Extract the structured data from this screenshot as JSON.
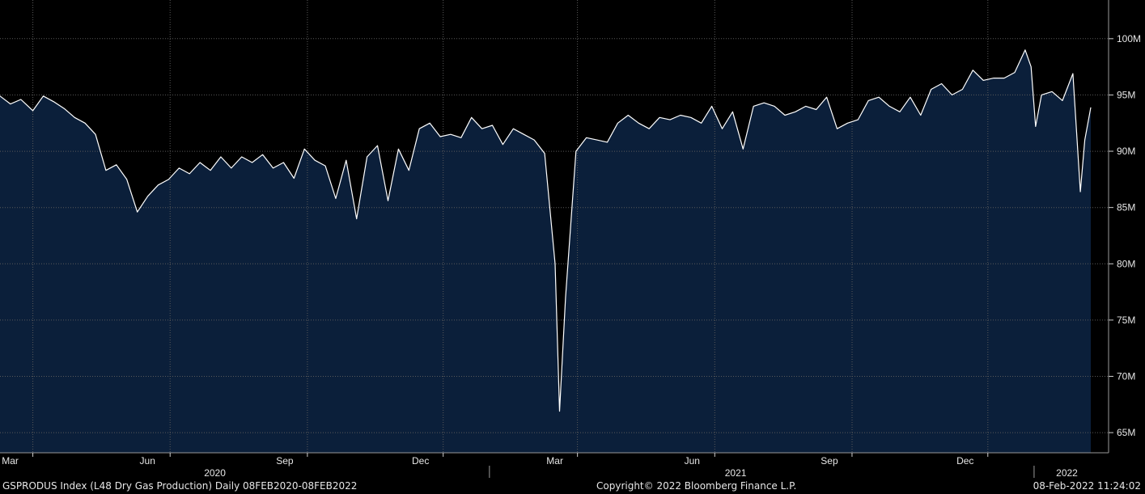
{
  "chart_data": {
    "type": "area",
    "ticker": "GSPRODUS Index (L48 Dry Gas Production)",
    "frequency": "Daily 08FEB2020-08FEB2022",
    "x_range": [
      "2020-02-08",
      "2022-02-08"
    ],
    "ylim": [
      64000000,
      102000000
    ],
    "y_ticks": [
      {
        "value": 65000000,
        "label": "65M"
      },
      {
        "value": 70000000,
        "label": "70M"
      },
      {
        "value": 75000000,
        "label": "75M"
      },
      {
        "value": 80000000,
        "label": "80M"
      },
      {
        "value": 85000000,
        "label": "85M"
      },
      {
        "value": 90000000,
        "label": "90M"
      },
      {
        "value": 95000000,
        "label": "95M"
      },
      {
        "value": 100000000,
        "label": "100M"
      }
    ],
    "x_month_ticks": [
      {
        "date": "2020-03-01",
        "label": "Mar"
      },
      {
        "date": "2020-06-01",
        "label": "Jun"
      },
      {
        "date": "2020-09-01",
        "label": "Sep"
      },
      {
        "date": "2020-12-01",
        "label": "Dec"
      },
      {
        "date": "2021-03-01",
        "label": "Mar"
      },
      {
        "date": "2021-06-01",
        "label": "Jun"
      },
      {
        "date": "2021-09-01",
        "label": "Sep"
      },
      {
        "date": "2021-12-01",
        "label": "Dec"
      }
    ],
    "x_year_labels": [
      {
        "date": "2020-07-01",
        "label": "2020"
      },
      {
        "date": "2021-06-15",
        "label": "2021"
      },
      {
        "date": "2022-01-23",
        "label": "2022"
      }
    ],
    "x_year_dividers": [
      "2021-01-01",
      "2022-01-01"
    ],
    "grid": true,
    "colors": {
      "background": "#000000",
      "area_fill": "#0b1f3a",
      "line": "#ffffff",
      "grid": "#5a5a5a",
      "text": "#e6e6e6"
    },
    "series": [
      {
        "points": [
          [
            "2020-02-08",
            94.9
          ],
          [
            "2020-02-15",
            94.2
          ],
          [
            "2020-02-22",
            94.6
          ],
          [
            "2020-03-01",
            93.6
          ],
          [
            "2020-03-08",
            94.9
          ],
          [
            "2020-03-15",
            94.4
          ],
          [
            "2020-03-22",
            93.8
          ],
          [
            "2020-03-29",
            93.0
          ],
          [
            "2020-04-05",
            92.5
          ],
          [
            "2020-04-12",
            91.5
          ],
          [
            "2020-04-19",
            88.3
          ],
          [
            "2020-04-26",
            88.8
          ],
          [
            "2020-05-03",
            87.5
          ],
          [
            "2020-05-10",
            84.6
          ],
          [
            "2020-05-17",
            86.0
          ],
          [
            "2020-05-24",
            87.0
          ],
          [
            "2020-05-31",
            87.5
          ],
          [
            "2020-06-07",
            88.5
          ],
          [
            "2020-06-14",
            88.0
          ],
          [
            "2020-06-21",
            89.0
          ],
          [
            "2020-06-28",
            88.3
          ],
          [
            "2020-07-05",
            89.5
          ],
          [
            "2020-07-12",
            88.5
          ],
          [
            "2020-07-19",
            89.5
          ],
          [
            "2020-07-26",
            89.0
          ],
          [
            "2020-08-02",
            89.7
          ],
          [
            "2020-08-09",
            88.5
          ],
          [
            "2020-08-16",
            89.0
          ],
          [
            "2020-08-23",
            87.6
          ],
          [
            "2020-08-30",
            90.2
          ],
          [
            "2020-09-06",
            89.2
          ],
          [
            "2020-09-13",
            88.7
          ],
          [
            "2020-09-20",
            85.8
          ],
          [
            "2020-09-27",
            89.2
          ],
          [
            "2020-10-04",
            84.0
          ],
          [
            "2020-10-11",
            89.5
          ],
          [
            "2020-10-18",
            90.5
          ],
          [
            "2020-10-25",
            85.6
          ],
          [
            "2020-11-01",
            90.2
          ],
          [
            "2020-11-08",
            88.3
          ],
          [
            "2020-11-15",
            92.0
          ],
          [
            "2020-11-22",
            92.5
          ],
          [
            "2020-11-29",
            91.3
          ],
          [
            "2020-12-06",
            91.5
          ],
          [
            "2020-12-13",
            91.2
          ],
          [
            "2020-12-20",
            93.0
          ],
          [
            "2020-12-27",
            92.0
          ],
          [
            "2021-01-03",
            92.3
          ],
          [
            "2021-01-10",
            90.6
          ],
          [
            "2021-01-17",
            92.0
          ],
          [
            "2021-01-24",
            91.5
          ],
          [
            "2021-01-31",
            91.0
          ],
          [
            "2021-02-07",
            89.8
          ],
          [
            "2021-02-14",
            80.0
          ],
          [
            "2021-02-17",
            66.9
          ],
          [
            "2021-02-21",
            77.0
          ],
          [
            "2021-02-28",
            90.0
          ],
          [
            "2021-03-07",
            91.2
          ],
          [
            "2021-03-14",
            91.0
          ],
          [
            "2021-03-21",
            90.8
          ],
          [
            "2021-03-28",
            92.5
          ],
          [
            "2021-04-04",
            93.2
          ],
          [
            "2021-04-11",
            92.5
          ],
          [
            "2021-04-18",
            92.0
          ],
          [
            "2021-04-25",
            93.0
          ],
          [
            "2021-05-02",
            92.8
          ],
          [
            "2021-05-09",
            93.2
          ],
          [
            "2021-05-16",
            93.0
          ],
          [
            "2021-05-23",
            92.5
          ],
          [
            "2021-05-30",
            94.0
          ],
          [
            "2021-06-06",
            92.0
          ],
          [
            "2021-06-13",
            93.5
          ],
          [
            "2021-06-20",
            90.2
          ],
          [
            "2021-06-27",
            94.0
          ],
          [
            "2021-07-04",
            94.3
          ],
          [
            "2021-07-11",
            94.0
          ],
          [
            "2021-07-18",
            93.2
          ],
          [
            "2021-07-25",
            93.5
          ],
          [
            "2021-08-01",
            94.0
          ],
          [
            "2021-08-08",
            93.7
          ],
          [
            "2021-08-15",
            94.8
          ],
          [
            "2021-08-22",
            92.0
          ],
          [
            "2021-08-29",
            92.5
          ],
          [
            "2021-09-05",
            92.8
          ],
          [
            "2021-09-12",
            94.5
          ],
          [
            "2021-09-19",
            94.8
          ],
          [
            "2021-09-26",
            94.0
          ],
          [
            "2021-10-03",
            93.5
          ],
          [
            "2021-10-10",
            94.8
          ],
          [
            "2021-10-17",
            93.2
          ],
          [
            "2021-10-24",
            95.5
          ],
          [
            "2021-10-31",
            96.0
          ],
          [
            "2021-11-07",
            95.0
          ],
          [
            "2021-11-14",
            95.5
          ],
          [
            "2021-11-21",
            97.2
          ],
          [
            "2021-11-28",
            96.3
          ],
          [
            "2021-12-05",
            96.5
          ],
          [
            "2021-12-12",
            96.5
          ],
          [
            "2021-12-19",
            97.0
          ],
          [
            "2021-12-26",
            99.0
          ],
          [
            "2021-12-30",
            97.5
          ],
          [
            "2022-01-02",
            92.2
          ],
          [
            "2022-01-06",
            95.0
          ],
          [
            "2022-01-13",
            95.3
          ],
          [
            "2022-01-20",
            94.5
          ],
          [
            "2022-01-27",
            96.9
          ],
          [
            "2022-02-01",
            86.4
          ],
          [
            "2022-02-04",
            91.0
          ],
          [
            "2022-02-08",
            93.9
          ]
        ]
      }
    ]
  },
  "footer": {
    "left": "GSPRODUS Index (L48 Dry Gas Production)  Daily 08FEB2020-08FEB2022",
    "center": "Copyright© 2022 Bloomberg Finance L.P.",
    "right": "08-Feb-2022 11:24:02"
  }
}
